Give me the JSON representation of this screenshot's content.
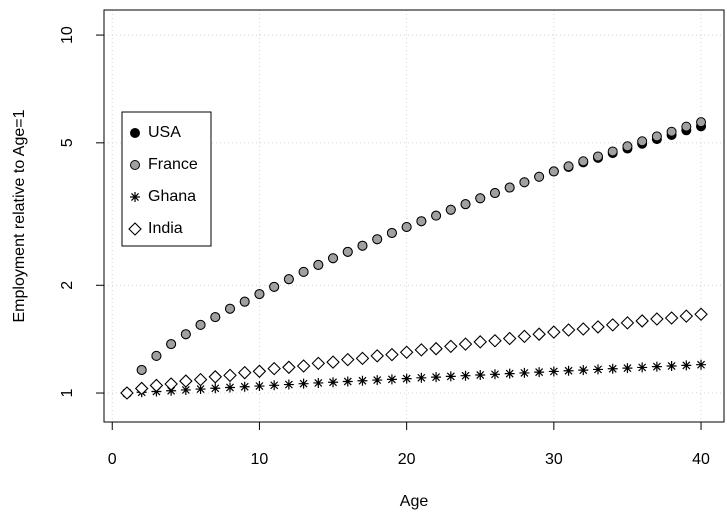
{
  "chart_data": {
    "type": "scatter",
    "xlabel": "Age",
    "ylabel": "Employment relative to Age=1",
    "x": [
      1,
      2,
      3,
      4,
      5,
      6,
      7,
      8,
      9,
      10,
      11,
      12,
      13,
      14,
      15,
      16,
      17,
      18,
      19,
      20,
      21,
      22,
      23,
      24,
      25,
      26,
      27,
      28,
      29,
      30,
      31,
      32,
      33,
      34,
      35,
      36,
      37,
      38,
      39,
      40
    ],
    "series": [
      {
        "name": "USA",
        "color": "#000000",
        "marker": "circle-filled",
        "values": [
          1,
          1.16,
          1.27,
          1.37,
          1.46,
          1.55,
          1.63,
          1.72,
          1.8,
          1.89,
          1.98,
          2.08,
          2.18,
          2.28,
          2.38,
          2.48,
          2.58,
          2.69,
          2.8,
          2.91,
          3.02,
          3.13,
          3.25,
          3.37,
          3.5,
          3.62,
          3.75,
          3.88,
          4.02,
          4.16,
          4.28,
          4.41,
          4.54,
          4.68,
          4.82,
          4.97,
          5.12,
          5.26,
          5.42,
          5.56
        ]
      },
      {
        "name": "France",
        "color": "#a0a0a0",
        "marker": "circle-filled",
        "values": [
          1,
          1.16,
          1.27,
          1.37,
          1.46,
          1.55,
          1.63,
          1.72,
          1.8,
          1.89,
          1.98,
          2.08,
          2.18,
          2.28,
          2.38,
          2.48,
          2.58,
          2.69,
          2.8,
          2.91,
          3.02,
          3.13,
          3.25,
          3.37,
          3.5,
          3.62,
          3.75,
          3.88,
          4.02,
          4.16,
          4.3,
          4.44,
          4.58,
          4.73,
          4.89,
          5.05,
          5.21,
          5.37,
          5.55,
          5.71
        ]
      },
      {
        "name": "Ghana",
        "color": "#000000",
        "marker": "asterisk",
        "values": [
          1,
          1.005,
          1.01,
          1.015,
          1.02,
          1.026,
          1.031,
          1.036,
          1.041,
          1.046,
          1.051,
          1.056,
          1.062,
          1.067,
          1.072,
          1.077,
          1.082,
          1.087,
          1.092,
          1.097,
          1.103,
          1.108,
          1.113,
          1.118,
          1.123,
          1.128,
          1.133,
          1.138,
          1.144,
          1.149,
          1.154,
          1.159,
          1.164,
          1.169,
          1.174,
          1.179,
          1.185,
          1.19,
          1.195,
          1.2
        ]
      },
      {
        "name": "India",
        "color": "#000000",
        "marker": "diamond-open",
        "values": [
          1,
          1.03,
          1.05,
          1.06,
          1.08,
          1.09,
          1.11,
          1.12,
          1.14,
          1.15,
          1.17,
          1.18,
          1.19,
          1.21,
          1.22,
          1.24,
          1.25,
          1.27,
          1.28,
          1.3,
          1.32,
          1.33,
          1.35,
          1.37,
          1.39,
          1.4,
          1.42,
          1.44,
          1.46,
          1.48,
          1.5,
          1.51,
          1.53,
          1.55,
          1.57,
          1.59,
          1.61,
          1.62,
          1.64,
          1.66
        ]
      }
    ],
    "xlim": [
      -0.56,
      41.56
    ],
    "xticks": [
      0,
      10,
      20,
      30,
      40
    ],
    "ylim": [
      0.83,
      11.75
    ],
    "yticks": [
      1,
      2,
      5,
      10
    ],
    "log_y": true,
    "grid": true,
    "legend": "left"
  }
}
